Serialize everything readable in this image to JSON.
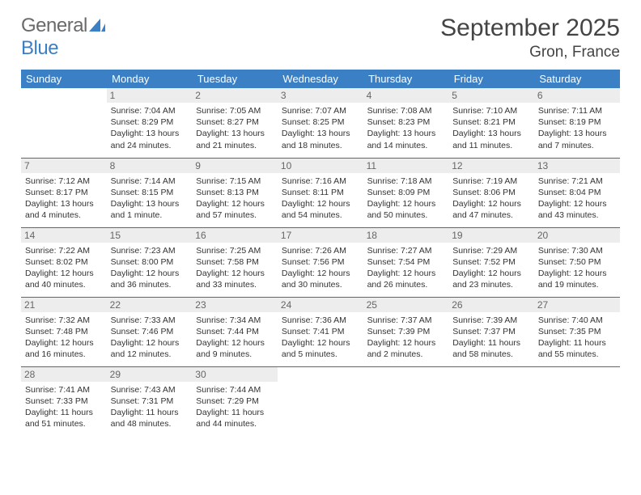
{
  "brand": {
    "name_gray": "General",
    "name_blue": "Blue"
  },
  "title": {
    "month": "September 2025",
    "location": "Gron, France"
  },
  "styling": {
    "header_bg": "#3b7fc4",
    "header_text": "#ffffff",
    "daynum_bg": "#ededed",
    "daynum_text": "#666666",
    "cell_text_color": "#333333",
    "row_border": "#3b6fa0",
    "background": "#ffffff",
    "font_family": "Arial",
    "month_title_fontsize": 30,
    "location_fontsize": 19,
    "dayheader_fontsize": 13,
    "daynum_fontsize": 12,
    "cell_fontsize": 10.5
  },
  "calendar": {
    "type": "table",
    "day_headers": [
      "Sunday",
      "Monday",
      "Tuesday",
      "Wednesday",
      "Thursday",
      "Friday",
      "Saturday"
    ],
    "weeks": [
      [
        null,
        {
          "n": "1",
          "sr": "Sunrise: 7:04 AM",
          "ss": "Sunset: 8:29 PM",
          "d1": "Daylight: 13 hours",
          "d2": "and 24 minutes."
        },
        {
          "n": "2",
          "sr": "Sunrise: 7:05 AM",
          "ss": "Sunset: 8:27 PM",
          "d1": "Daylight: 13 hours",
          "d2": "and 21 minutes."
        },
        {
          "n": "3",
          "sr": "Sunrise: 7:07 AM",
          "ss": "Sunset: 8:25 PM",
          "d1": "Daylight: 13 hours",
          "d2": "and 18 minutes."
        },
        {
          "n": "4",
          "sr": "Sunrise: 7:08 AM",
          "ss": "Sunset: 8:23 PM",
          "d1": "Daylight: 13 hours",
          "d2": "and 14 minutes."
        },
        {
          "n": "5",
          "sr": "Sunrise: 7:10 AM",
          "ss": "Sunset: 8:21 PM",
          "d1": "Daylight: 13 hours",
          "d2": "and 11 minutes."
        },
        {
          "n": "6",
          "sr": "Sunrise: 7:11 AM",
          "ss": "Sunset: 8:19 PM",
          "d1": "Daylight: 13 hours",
          "d2": "and 7 minutes."
        }
      ],
      [
        {
          "n": "7",
          "sr": "Sunrise: 7:12 AM",
          "ss": "Sunset: 8:17 PM",
          "d1": "Daylight: 13 hours",
          "d2": "and 4 minutes."
        },
        {
          "n": "8",
          "sr": "Sunrise: 7:14 AM",
          "ss": "Sunset: 8:15 PM",
          "d1": "Daylight: 13 hours",
          "d2": "and 1 minute."
        },
        {
          "n": "9",
          "sr": "Sunrise: 7:15 AM",
          "ss": "Sunset: 8:13 PM",
          "d1": "Daylight: 12 hours",
          "d2": "and 57 minutes."
        },
        {
          "n": "10",
          "sr": "Sunrise: 7:16 AM",
          "ss": "Sunset: 8:11 PM",
          "d1": "Daylight: 12 hours",
          "d2": "and 54 minutes."
        },
        {
          "n": "11",
          "sr": "Sunrise: 7:18 AM",
          "ss": "Sunset: 8:09 PM",
          "d1": "Daylight: 12 hours",
          "d2": "and 50 minutes."
        },
        {
          "n": "12",
          "sr": "Sunrise: 7:19 AM",
          "ss": "Sunset: 8:06 PM",
          "d1": "Daylight: 12 hours",
          "d2": "and 47 minutes."
        },
        {
          "n": "13",
          "sr": "Sunrise: 7:21 AM",
          "ss": "Sunset: 8:04 PM",
          "d1": "Daylight: 12 hours",
          "d2": "and 43 minutes."
        }
      ],
      [
        {
          "n": "14",
          "sr": "Sunrise: 7:22 AM",
          "ss": "Sunset: 8:02 PM",
          "d1": "Daylight: 12 hours",
          "d2": "and 40 minutes."
        },
        {
          "n": "15",
          "sr": "Sunrise: 7:23 AM",
          "ss": "Sunset: 8:00 PM",
          "d1": "Daylight: 12 hours",
          "d2": "and 36 minutes."
        },
        {
          "n": "16",
          "sr": "Sunrise: 7:25 AM",
          "ss": "Sunset: 7:58 PM",
          "d1": "Daylight: 12 hours",
          "d2": "and 33 minutes."
        },
        {
          "n": "17",
          "sr": "Sunrise: 7:26 AM",
          "ss": "Sunset: 7:56 PM",
          "d1": "Daylight: 12 hours",
          "d2": "and 30 minutes."
        },
        {
          "n": "18",
          "sr": "Sunrise: 7:27 AM",
          "ss": "Sunset: 7:54 PM",
          "d1": "Daylight: 12 hours",
          "d2": "and 26 minutes."
        },
        {
          "n": "19",
          "sr": "Sunrise: 7:29 AM",
          "ss": "Sunset: 7:52 PM",
          "d1": "Daylight: 12 hours",
          "d2": "and 23 minutes."
        },
        {
          "n": "20",
          "sr": "Sunrise: 7:30 AM",
          "ss": "Sunset: 7:50 PM",
          "d1": "Daylight: 12 hours",
          "d2": "and 19 minutes."
        }
      ],
      [
        {
          "n": "21",
          "sr": "Sunrise: 7:32 AM",
          "ss": "Sunset: 7:48 PM",
          "d1": "Daylight: 12 hours",
          "d2": "and 16 minutes."
        },
        {
          "n": "22",
          "sr": "Sunrise: 7:33 AM",
          "ss": "Sunset: 7:46 PM",
          "d1": "Daylight: 12 hours",
          "d2": "and 12 minutes."
        },
        {
          "n": "23",
          "sr": "Sunrise: 7:34 AM",
          "ss": "Sunset: 7:44 PM",
          "d1": "Daylight: 12 hours",
          "d2": "and 9 minutes."
        },
        {
          "n": "24",
          "sr": "Sunrise: 7:36 AM",
          "ss": "Sunset: 7:41 PM",
          "d1": "Daylight: 12 hours",
          "d2": "and 5 minutes."
        },
        {
          "n": "25",
          "sr": "Sunrise: 7:37 AM",
          "ss": "Sunset: 7:39 PM",
          "d1": "Daylight: 12 hours",
          "d2": "and 2 minutes."
        },
        {
          "n": "26",
          "sr": "Sunrise: 7:39 AM",
          "ss": "Sunset: 7:37 PM",
          "d1": "Daylight: 11 hours",
          "d2": "and 58 minutes."
        },
        {
          "n": "27",
          "sr": "Sunrise: 7:40 AM",
          "ss": "Sunset: 7:35 PM",
          "d1": "Daylight: 11 hours",
          "d2": "and 55 minutes."
        }
      ],
      [
        {
          "n": "28",
          "sr": "Sunrise: 7:41 AM",
          "ss": "Sunset: 7:33 PM",
          "d1": "Daylight: 11 hours",
          "d2": "and 51 minutes."
        },
        {
          "n": "29",
          "sr": "Sunrise: 7:43 AM",
          "ss": "Sunset: 7:31 PM",
          "d1": "Daylight: 11 hours",
          "d2": "and 48 minutes."
        },
        {
          "n": "30",
          "sr": "Sunrise: 7:44 AM",
          "ss": "Sunset: 7:29 PM",
          "d1": "Daylight: 11 hours",
          "d2": "and 44 minutes."
        },
        null,
        null,
        null,
        null
      ]
    ]
  }
}
